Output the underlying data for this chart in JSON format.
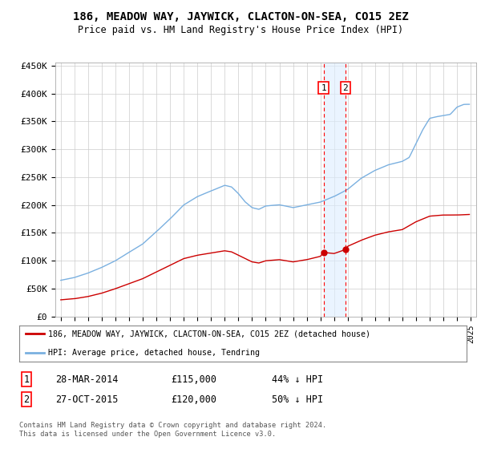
{
  "title": "186, MEADOW WAY, JAYWICK, CLACTON-ON-SEA, CO15 2EZ",
  "subtitle": "Price paid vs. HM Land Registry's House Price Index (HPI)",
  "ylim": [
    0,
    450000
  ],
  "yticks": [
    0,
    50000,
    100000,
    150000,
    200000,
    250000,
    300000,
    350000,
    400000,
    450000
  ],
  "ytick_labels": [
    "£0",
    "£50K",
    "£100K",
    "£150K",
    "£200K",
    "£250K",
    "£300K",
    "£350K",
    "£400K",
    "£450K"
  ],
  "hpi_color": "#7ab0e0",
  "price_color": "#cc0000",
  "marker1_date": 2014.23,
  "marker2_date": 2015.82,
  "marker1_price": 115000,
  "marker2_price": 120000,
  "legend_label_price": "186, MEADOW WAY, JAYWICK, CLACTON-ON-SEA, CO15 2EZ (detached house)",
  "legend_label_hpi": "HPI: Average price, detached house, Tendring",
  "table_rows": [
    [
      "1",
      "28-MAR-2014",
      "£115,000",
      "44% ↓ HPI"
    ],
    [
      "2",
      "27-OCT-2015",
      "£120,000",
      "50% ↓ HPI"
    ]
  ],
  "footnote": "Contains HM Land Registry data © Crown copyright and database right 2024.\nThis data is licensed under the Open Government Licence v3.0.",
  "background_color": "#ffffff",
  "grid_color": "#cccccc",
  "highlight_color": "#ddeeff"
}
